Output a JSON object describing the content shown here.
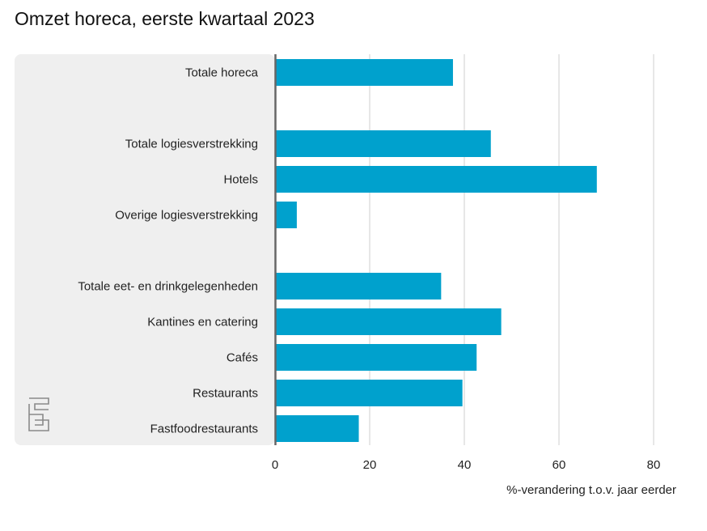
{
  "title": "Omzet horeca, eerste kwartaal 2023",
  "chart_data": {
    "type": "bar",
    "orientation": "horizontal",
    "title": "Omzet horeca, eerste kwartaal 2023",
    "xlabel": "%-verandering t.o.v. jaar eerder",
    "ylabel": "",
    "xlim": [
      0,
      80
    ],
    "xticks": [
      "0",
      "20",
      "40",
      "60",
      "80"
    ],
    "grid": true,
    "categories": [
      "Totale horeca",
      "",
      "Totale logiesverstrekking",
      "Hotels",
      "Overige logiesverstrekking",
      "",
      "Totale eet- en drinkgelegenheden",
      "Kantines en catering",
      "Cafés",
      "Restaurants",
      "Fastfoodrestaurants"
    ],
    "values": [
      37.6,
      null,
      45.6,
      68.0,
      4.6,
      null,
      35.1,
      47.8,
      42.6,
      39.6,
      17.7
    ],
    "bar_color": "#00a1cd"
  },
  "logo": {
    "icon": "cbs-logo-icon"
  }
}
